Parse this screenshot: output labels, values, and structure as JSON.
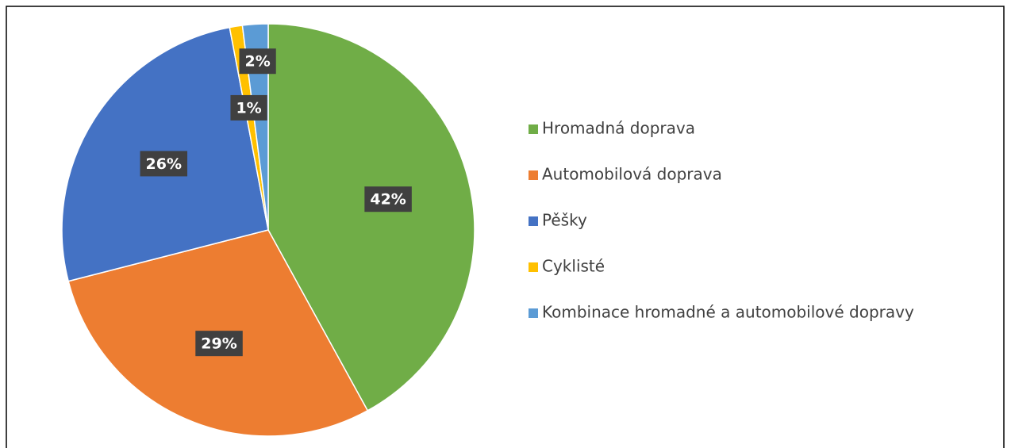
{
  "chart_data": {
    "type": "pie",
    "categories": [
      "Hromadná doprava",
      "Automobilová doprava",
      "Pěšky",
      "Cyklisté",
      "Kombinace hromadné a automobilové dopravy"
    ],
    "values": [
      42,
      29,
      26,
      1,
      2
    ],
    "value_labels": [
      "42%",
      "29%",
      "26%",
      "1%",
      "2%"
    ],
    "colors": [
      "#70ad47",
      "#ed7d31",
      "#4472c4",
      "#ffc000",
      "#5b9bd5"
    ],
    "legend": "right"
  }
}
